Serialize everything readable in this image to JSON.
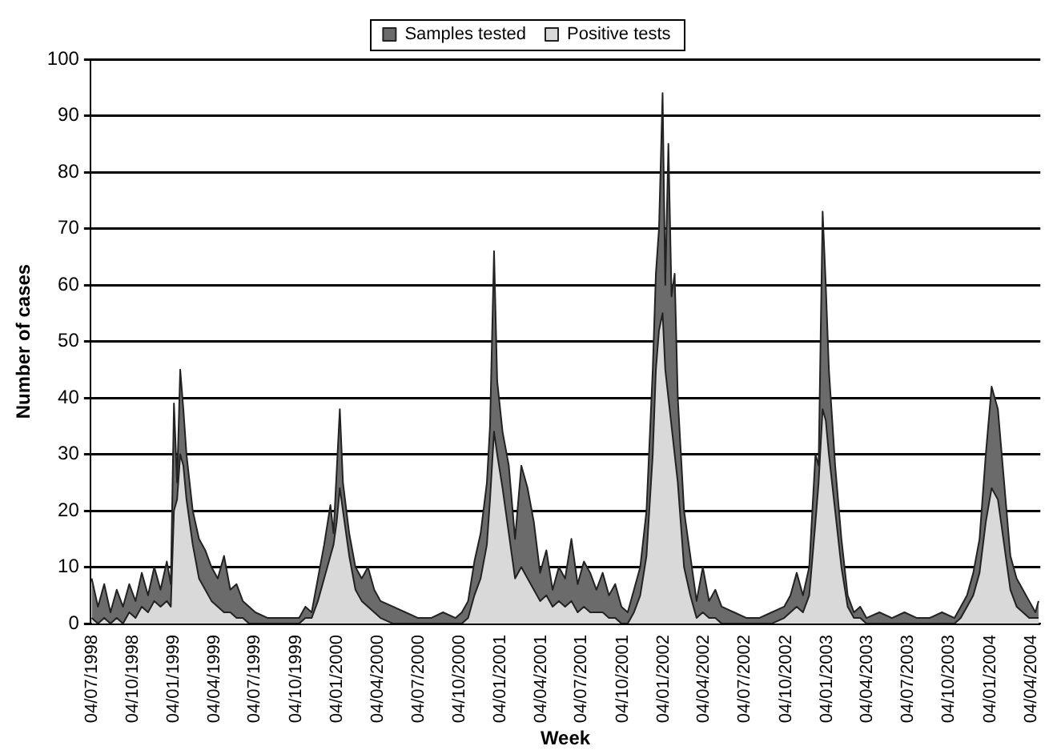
{
  "chart_data": {
    "type": "area",
    "xlabel": "Week",
    "ylabel": "Number of cases",
    "x": [
      "1998-07-04",
      "1998-07-18",
      "1998-08-01",
      "1998-08-15",
      "1998-08-29",
      "1998-09-12",
      "1998-09-26",
      "1998-10-10",
      "1998-10-24",
      "1998-11-07",
      "1998-11-21",
      "1998-12-05",
      "1998-12-19",
      "1998-12-28",
      "1999-01-04",
      "1999-01-11",
      "1999-01-18",
      "1999-01-25",
      "1999-02-01",
      "1999-02-15",
      "1999-03-01",
      "1999-03-15",
      "1999-03-29",
      "1999-04-12",
      "1999-04-26",
      "1999-05-10",
      "1999-05-24",
      "1999-06-07",
      "1999-06-21",
      "1999-07-05",
      "1999-08-02",
      "1999-08-30",
      "1999-09-27",
      "1999-10-11",
      "1999-10-25",
      "1999-11-08",
      "1999-11-22",
      "1999-12-06",
      "1999-12-20",
      "1999-12-27",
      "2000-01-03",
      "2000-01-10",
      "2000-01-17",
      "2000-01-31",
      "2000-02-14",
      "2000-02-28",
      "2000-03-13",
      "2000-03-27",
      "2000-04-10",
      "2000-05-08",
      "2000-06-05",
      "2000-07-03",
      "2000-08-01",
      "2000-08-28",
      "2000-09-25",
      "2000-10-09",
      "2000-10-23",
      "2000-11-06",
      "2000-11-20",
      "2000-12-04",
      "2000-12-11",
      "2000-12-20",
      "2000-12-27",
      "2001-01-08",
      "2001-01-22",
      "2001-02-05",
      "2001-02-19",
      "2001-03-05",
      "2001-03-19",
      "2001-04-02",
      "2001-04-16",
      "2001-04-30",
      "2001-05-14",
      "2001-05-28",
      "2001-06-11",
      "2001-06-25",
      "2001-07-09",
      "2001-07-23",
      "2001-08-06",
      "2001-08-20",
      "2001-09-03",
      "2001-09-17",
      "2001-10-01",
      "2001-10-15",
      "2001-10-29",
      "2001-11-12",
      "2001-11-26",
      "2001-12-10",
      "2001-12-17",
      "2001-12-24",
      "2002-01-01",
      "2002-01-07",
      "2002-01-14",
      "2002-01-21",
      "2002-01-28",
      "2002-02-04",
      "2002-02-18",
      "2002-03-04",
      "2002-03-18",
      "2002-04-01",
      "2002-04-15",
      "2002-04-29",
      "2002-05-13",
      "2002-06-10",
      "2002-07-08",
      "2002-08-05",
      "2002-09-02",
      "2002-09-30",
      "2002-10-14",
      "2002-10-28",
      "2002-11-11",
      "2002-11-25",
      "2002-12-09",
      "2002-12-16",
      "2002-12-25",
      "2003-01-01",
      "2003-01-08",
      "2003-01-22",
      "2003-02-05",
      "2003-02-19",
      "2003-03-05",
      "2003-03-19",
      "2003-04-02",
      "2003-05-01",
      "2003-05-29",
      "2003-06-26",
      "2003-07-24",
      "2003-08-21",
      "2003-09-18",
      "2003-10-16",
      "2003-10-30",
      "2003-11-13",
      "2003-11-27",
      "2003-12-11",
      "2003-12-25",
      "2004-01-07",
      "2004-01-21",
      "2004-02-04",
      "2004-02-18",
      "2004-03-03",
      "2004-03-17",
      "2004-03-31",
      "2004-04-14",
      "2004-04-21"
    ],
    "series": [
      {
        "name": "Samples tested",
        "color": "#6b6b6b",
        "values": [
          8,
          3,
          7,
          2,
          6,
          3,
          7,
          4,
          9,
          5,
          10,
          6,
          11,
          7,
          39,
          25,
          45,
          38,
          30,
          20,
          15,
          13,
          10,
          8,
          12,
          6,
          7,
          4,
          3,
          2,
          1,
          1,
          1,
          1,
          3,
          2,
          8,
          14,
          21,
          16,
          27,
          38,
          25,
          16,
          10,
          8,
          10,
          6,
          4,
          3,
          2,
          1,
          1,
          2,
          1,
          2,
          4,
          11,
          16,
          25,
          35,
          66,
          43,
          34,
          28,
          15,
          28,
          24,
          18,
          9,
          13,
          6,
          10,
          8,
          15,
          7,
          11,
          9,
          6,
          9,
          5,
          7,
          3,
          2,
          6,
          10,
          20,
          45,
          62,
          70,
          94,
          60,
          85,
          58,
          62,
          40,
          20,
          12,
          4,
          10,
          4,
          6,
          3,
          2,
          1,
          1,
          2,
          3,
          5,
          9,
          5,
          10,
          30,
          28,
          73,
          60,
          45,
          28,
          15,
          5,
          2,
          3,
          1,
          2,
          1,
          2,
          1,
          1,
          2,
          1,
          3,
          5,
          9,
          15,
          30,
          42,
          38,
          25,
          12,
          8,
          6,
          4,
          2,
          4
        ]
      },
      {
        "name": "Positive tests",
        "color": "#d9d9d9",
        "values": [
          1,
          0,
          1,
          0,
          1,
          0,
          2,
          1,
          3,
          2,
          4,
          3,
          4,
          3,
          20,
          22,
          30,
          28,
          22,
          14,
          8,
          6,
          4,
          3,
          2,
          2,
          1,
          1,
          0,
          0,
          0,
          0,
          0,
          0,
          1,
          1,
          4,
          8,
          12,
          14,
          18,
          24,
          20,
          12,
          6,
          4,
          3,
          2,
          1,
          0,
          0,
          0,
          0,
          0,
          0,
          0,
          1,
          5,
          8,
          14,
          22,
          34,
          30,
          24,
          16,
          8,
          10,
          8,
          6,
          4,
          5,
          3,
          4,
          3,
          4,
          2,
          3,
          2,
          2,
          2,
          1,
          1,
          0,
          0,
          2,
          5,
          12,
          30,
          45,
          52,
          55,
          45,
          40,
          35,
          30,
          25,
          10,
          5,
          1,
          2,
          1,
          1,
          0,
          0,
          0,
          0,
          0,
          1,
          2,
          3,
          2,
          5,
          18,
          25,
          38,
          36,
          30,
          20,
          10,
          3,
          1,
          1,
          0,
          0,
          0,
          0,
          0,
          0,
          0,
          0,
          1,
          3,
          5,
          9,
          18,
          24,
          22,
          14,
          6,
          3,
          2,
          1,
          1,
          1
        ]
      }
    ],
    "xlim": [
      "1998-07-01",
      "2004-04-25"
    ],
    "xticks": [
      {
        "value": "1998-07-04",
        "label": "04/07/1998"
      },
      {
        "value": "1998-10-04",
        "label": "04/10/1998"
      },
      {
        "value": "1999-01-04",
        "label": "04/01/1999"
      },
      {
        "value": "1999-04-04",
        "label": "04/04/1999"
      },
      {
        "value": "1999-07-04",
        "label": "04/07/1999"
      },
      {
        "value": "1999-10-04",
        "label": "04/10/1999"
      },
      {
        "value": "2000-01-04",
        "label": "04/01/2000"
      },
      {
        "value": "2000-04-04",
        "label": "04/04/2000"
      },
      {
        "value": "2000-07-04",
        "label": "04/07/2000"
      },
      {
        "value": "2000-10-04",
        "label": "04/10/2000"
      },
      {
        "value": "2001-01-04",
        "label": "04/01/2001"
      },
      {
        "value": "2001-04-04",
        "label": "04/04/2001"
      },
      {
        "value": "2001-07-04",
        "label": "04/07/2001"
      },
      {
        "value": "2001-10-04",
        "label": "04/10/2001"
      },
      {
        "value": "2002-01-04",
        "label": "04/01/2002"
      },
      {
        "value": "2002-04-04",
        "label": "04/04/2002"
      },
      {
        "value": "2002-07-04",
        "label": "04/07/2002"
      },
      {
        "value": "2002-10-04",
        "label": "04/10/2002"
      },
      {
        "value": "2003-01-04",
        "label": "04/01/2003"
      },
      {
        "value": "2003-04-04",
        "label": "04/04/2003"
      },
      {
        "value": "2003-07-04",
        "label": "04/07/2003"
      },
      {
        "value": "2003-10-04",
        "label": "04/10/2003"
      },
      {
        "value": "2004-01-04",
        "label": "04/01/2004"
      },
      {
        "value": "2004-04-04",
        "label": "04/04/2004"
      }
    ],
    "ylim": [
      0,
      100
    ],
    "yticks": [
      0,
      10,
      20,
      30,
      40,
      50,
      60,
      70,
      80,
      90,
      100
    ],
    "grid": "y",
    "legend": "top",
    "marker": "none",
    "line_style": "solid"
  }
}
